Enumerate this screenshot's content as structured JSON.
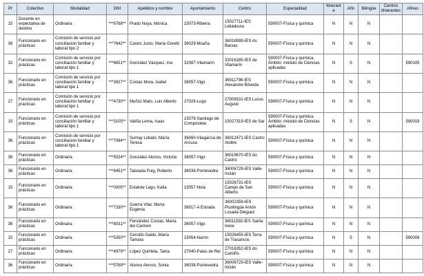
{
  "table": {
    "columns": [
      {
        "key": "pr",
        "label": "Pr"
      },
      {
        "key": "colectivo",
        "label": "Colectivo"
      },
      {
        "key": "modalidad",
        "label": "Modalidad"
      },
      {
        "key": "dni",
        "label": "DNI"
      },
      {
        "key": "nombre",
        "label": "Apellidos y nombre"
      },
      {
        "key": "ayuntamiento",
        "label": "Ayuntamiento"
      },
      {
        "key": "centro",
        "label": "Centro"
      },
      {
        "key": "especialidad",
        "label": "Especialidad"
      },
      {
        "key": "itinerante",
        "label": "Itinerante"
      },
      {
        "key": "afin",
        "label": "Afín"
      },
      {
        "key": "bilingue",
        "label": "Bilingüe"
      },
      {
        "key": "centros_itinerantes",
        "label": "Centros itinerantes"
      },
      {
        "key": "afines",
        "label": "Afines"
      }
    ],
    "rows": [
      {
        "pr": "15",
        "colectivo": "Docente en expectativa de destino",
        "modalidad": "Ordinaria",
        "dni": "***6768**",
        "nombre": "Prado Noya, Mónica",
        "ayuntamiento": "15073-Ribeira",
        "centro": "15027711-IES Leliadoura",
        "especialidad": "590007-Física y química",
        "itinerante": "N",
        "afin": "N",
        "bilingue": "N",
        "centros_itinerantes": "",
        "afines": ""
      },
      {
        "pr": "36",
        "colectivo": "Funcionario en prácticas",
        "modalidad": "Comisión de servicio por conciliación familiar y laboral tipo 2",
        "dni": "***7642**",
        "nombre": "Castro Justo, María Goretti",
        "ayuntamiento": "36029-Moaña",
        "centro": "36018999-IES As Barxas",
        "especialidad": "590007-Física y química",
        "itinerante": "N",
        "afin": "N",
        "bilingue": "N",
        "centros_itinerantes": "",
        "afines": ""
      },
      {
        "pr": "32",
        "colectivo": "Funcionario en prácticas",
        "modalidad": "Comisión de servicio por conciliación familiar y laboral tipo 1",
        "dni": "***6651**",
        "nombre": "González Vázquez, Iria",
        "ayuntamiento": "32087-Vilamarín",
        "centro": "32016285-IES de Vilamarín",
        "especialidad": "590007-Física y química. Ámbito: módulo de Ciencias aplicadas",
        "itinerante": "N",
        "afin": "S",
        "bilingue": "N",
        "centros_itinerantes": "",
        "afines": "590105"
      },
      {
        "pr": "36",
        "colectivo": "Funcionario en prácticas",
        "modalidad": "Comisión de servicio por conciliación familiar y laboral tipo 1",
        "dni": "***3927**",
        "nombre": "Costas Mora, Isabel",
        "ayuntamiento": "36057-Vigo",
        "centro": "36011798-IES Alexandre Bóveda",
        "especialidad": "590007-Física y química",
        "itinerante": "N",
        "afin": "N",
        "bilingue": "N",
        "centros_itinerantes": "",
        "afines": ""
      },
      {
        "pr": "27",
        "colectivo": "Funcionario en prácticas",
        "modalidad": "Comisión de servicio por conciliación familiar y laboral tipo 1",
        "dni": "***4730**",
        "nombre": "Muñoz Mato, Luis Alberto",
        "ayuntamiento": "27028-Lugo",
        "centro": "27006531-IES Lucus Augusti",
        "especialidad": "590007-Física y química",
        "itinerante": "N",
        "afin": "N",
        "bilingue": "N",
        "centros_itinerantes": "",
        "afines": ""
      },
      {
        "pr": "15",
        "colectivo": "Funcionario en prácticas",
        "modalidad": "Comisión de servicio por conciliación familiar y laboral tipo 1",
        "dni": "***3105**",
        "nombre": "Valiña Lema, Isaac",
        "ayuntamiento": "15078-Santiago de Compostela",
        "centro": "15027319-IES de Sar",
        "especialidad": "590007-Física y química. Ámbito: módulo de Ciencias aplicadas",
        "itinerante": "N",
        "afin": "S",
        "bilingue": "N",
        "centros_itinerantes": "",
        "afines": "590019"
      },
      {
        "pr": "36",
        "colectivo": "Funcionario en prácticas",
        "modalidad": "Comisión de servicio por conciliación familiar y laboral tipo 1",
        "dni": "***7084**",
        "nombre": "Sumay Lobato, María Teresa",
        "ayuntamiento": "36060-Vilagarcía de Arousa",
        "centro": "36012471-IES Castro Alobre",
        "especialidad": "590007-Física y química",
        "itinerante": "N",
        "afin": "N",
        "bilingue": "N",
        "centros_itinerantes": "",
        "afines": ""
      },
      {
        "pr": "36",
        "colectivo": "Funcionario en prácticas",
        "modalidad": "Ordinaria",
        "dni": "***5024**",
        "nombre": "González Alonso, Victoria",
        "ayuntamiento": "36057-Vigo",
        "centro": "36019670-IES do Castro",
        "especialidad": "590007-Física y química",
        "itinerante": "N",
        "afin": "N",
        "bilingue": "N",
        "centros_itinerantes": "",
        "afines": ""
      },
      {
        "pr": "36",
        "colectivo": "Funcionario en prácticas",
        "modalidad": "Ordinaria",
        "dni": "***8451**",
        "nombre": "Taboada Puig, Roberto",
        "ayuntamiento": "36038-Pontevedra",
        "centro": "36006729-IES Valle-Inclán",
        "especialidad": "590007-Física y química",
        "itinerante": "N",
        "afin": "N",
        "bilingue": "N",
        "centros_itinerantes": "",
        "afines": ""
      },
      {
        "pr": "15",
        "colectivo": "Funcionario en prácticas",
        "modalidad": "Ordinaria",
        "dni": "***0005**",
        "nombre": "Estalote Lago, Katia",
        "ayuntamiento": "15057-Noia",
        "centro": "15026731-IES Campo de San Alberto",
        "especialidad": "590007-Física y química",
        "itinerante": "N",
        "afin": "N",
        "bilingue": "N",
        "centros_itinerantes": "",
        "afines": ""
      },
      {
        "pr": "36",
        "colectivo": "Funcionario en prácticas",
        "modalidad": "Ordinaria",
        "dni": "***7330**",
        "nombre": "Guerra Vilar, María Eugenia",
        "ayuntamiento": "36017-A Estrada",
        "centro": "36002359-IES Plurilingüe Antón Losada Diéguez",
        "especialidad": "590007-Física y química",
        "itinerante": "N",
        "afin": "N",
        "bilingue": "N",
        "centros_itinerantes": "",
        "afines": ""
      },
      {
        "pr": "36",
        "colectivo": "Funcionario en prácticas",
        "modalidad": "Ordinaria",
        "dni": "***8031**",
        "nombre": "Fernández Costas, María del Carmen",
        "ayuntamiento": "36057-Vigo",
        "centro": "36011592-IES Santa Irene",
        "especialidad": "590007-Física y química",
        "itinerante": "N",
        "afin": "N",
        "bilingue": "N",
        "centros_itinerantes": "",
        "afines": ""
      },
      {
        "pr": "15",
        "colectivo": "Funcionario en prácticas",
        "modalidad": "Ordinaria",
        "dni": "***5350**",
        "nombre": "Cercido Galdo, María Tamara",
        "ayuntamiento": "15054-Narón",
        "centro": "15026455-IES Terra de Trasancos",
        "especialidad": "590007-Física y química",
        "itinerante": "N",
        "afin": "S",
        "bilingue": "N",
        "centros_itinerantes": "",
        "afines": "590008"
      },
      {
        "pr": "27",
        "colectivo": "Funcionario en prácticas",
        "modalidad": "Ordinaria",
        "dni": "***4979**",
        "nombre": "López Quintela, Tania",
        "ayuntamiento": "27040-Palas de Rei",
        "centro": "27016352-IES do Camiño",
        "especialidad": "590007-Física y química",
        "itinerante": "N",
        "afin": "N",
        "bilingue": "N",
        "centros_itinerantes": "",
        "afines": ""
      },
      {
        "pr": "36",
        "colectivo": "Funcionario en prácticas",
        "modalidad": "Ordinaria",
        "dni": "***5769**",
        "nombre": "Alonso Alonso, Sonia",
        "ayuntamiento": "36038-Pontevedra",
        "centro": "36006729-IES Valle-Inclán",
        "especialidad": "590007-Física y química",
        "itinerante": "N",
        "afin": "N",
        "bilingue": "N",
        "centros_itinerantes": "",
        "afines": ""
      }
    ]
  }
}
